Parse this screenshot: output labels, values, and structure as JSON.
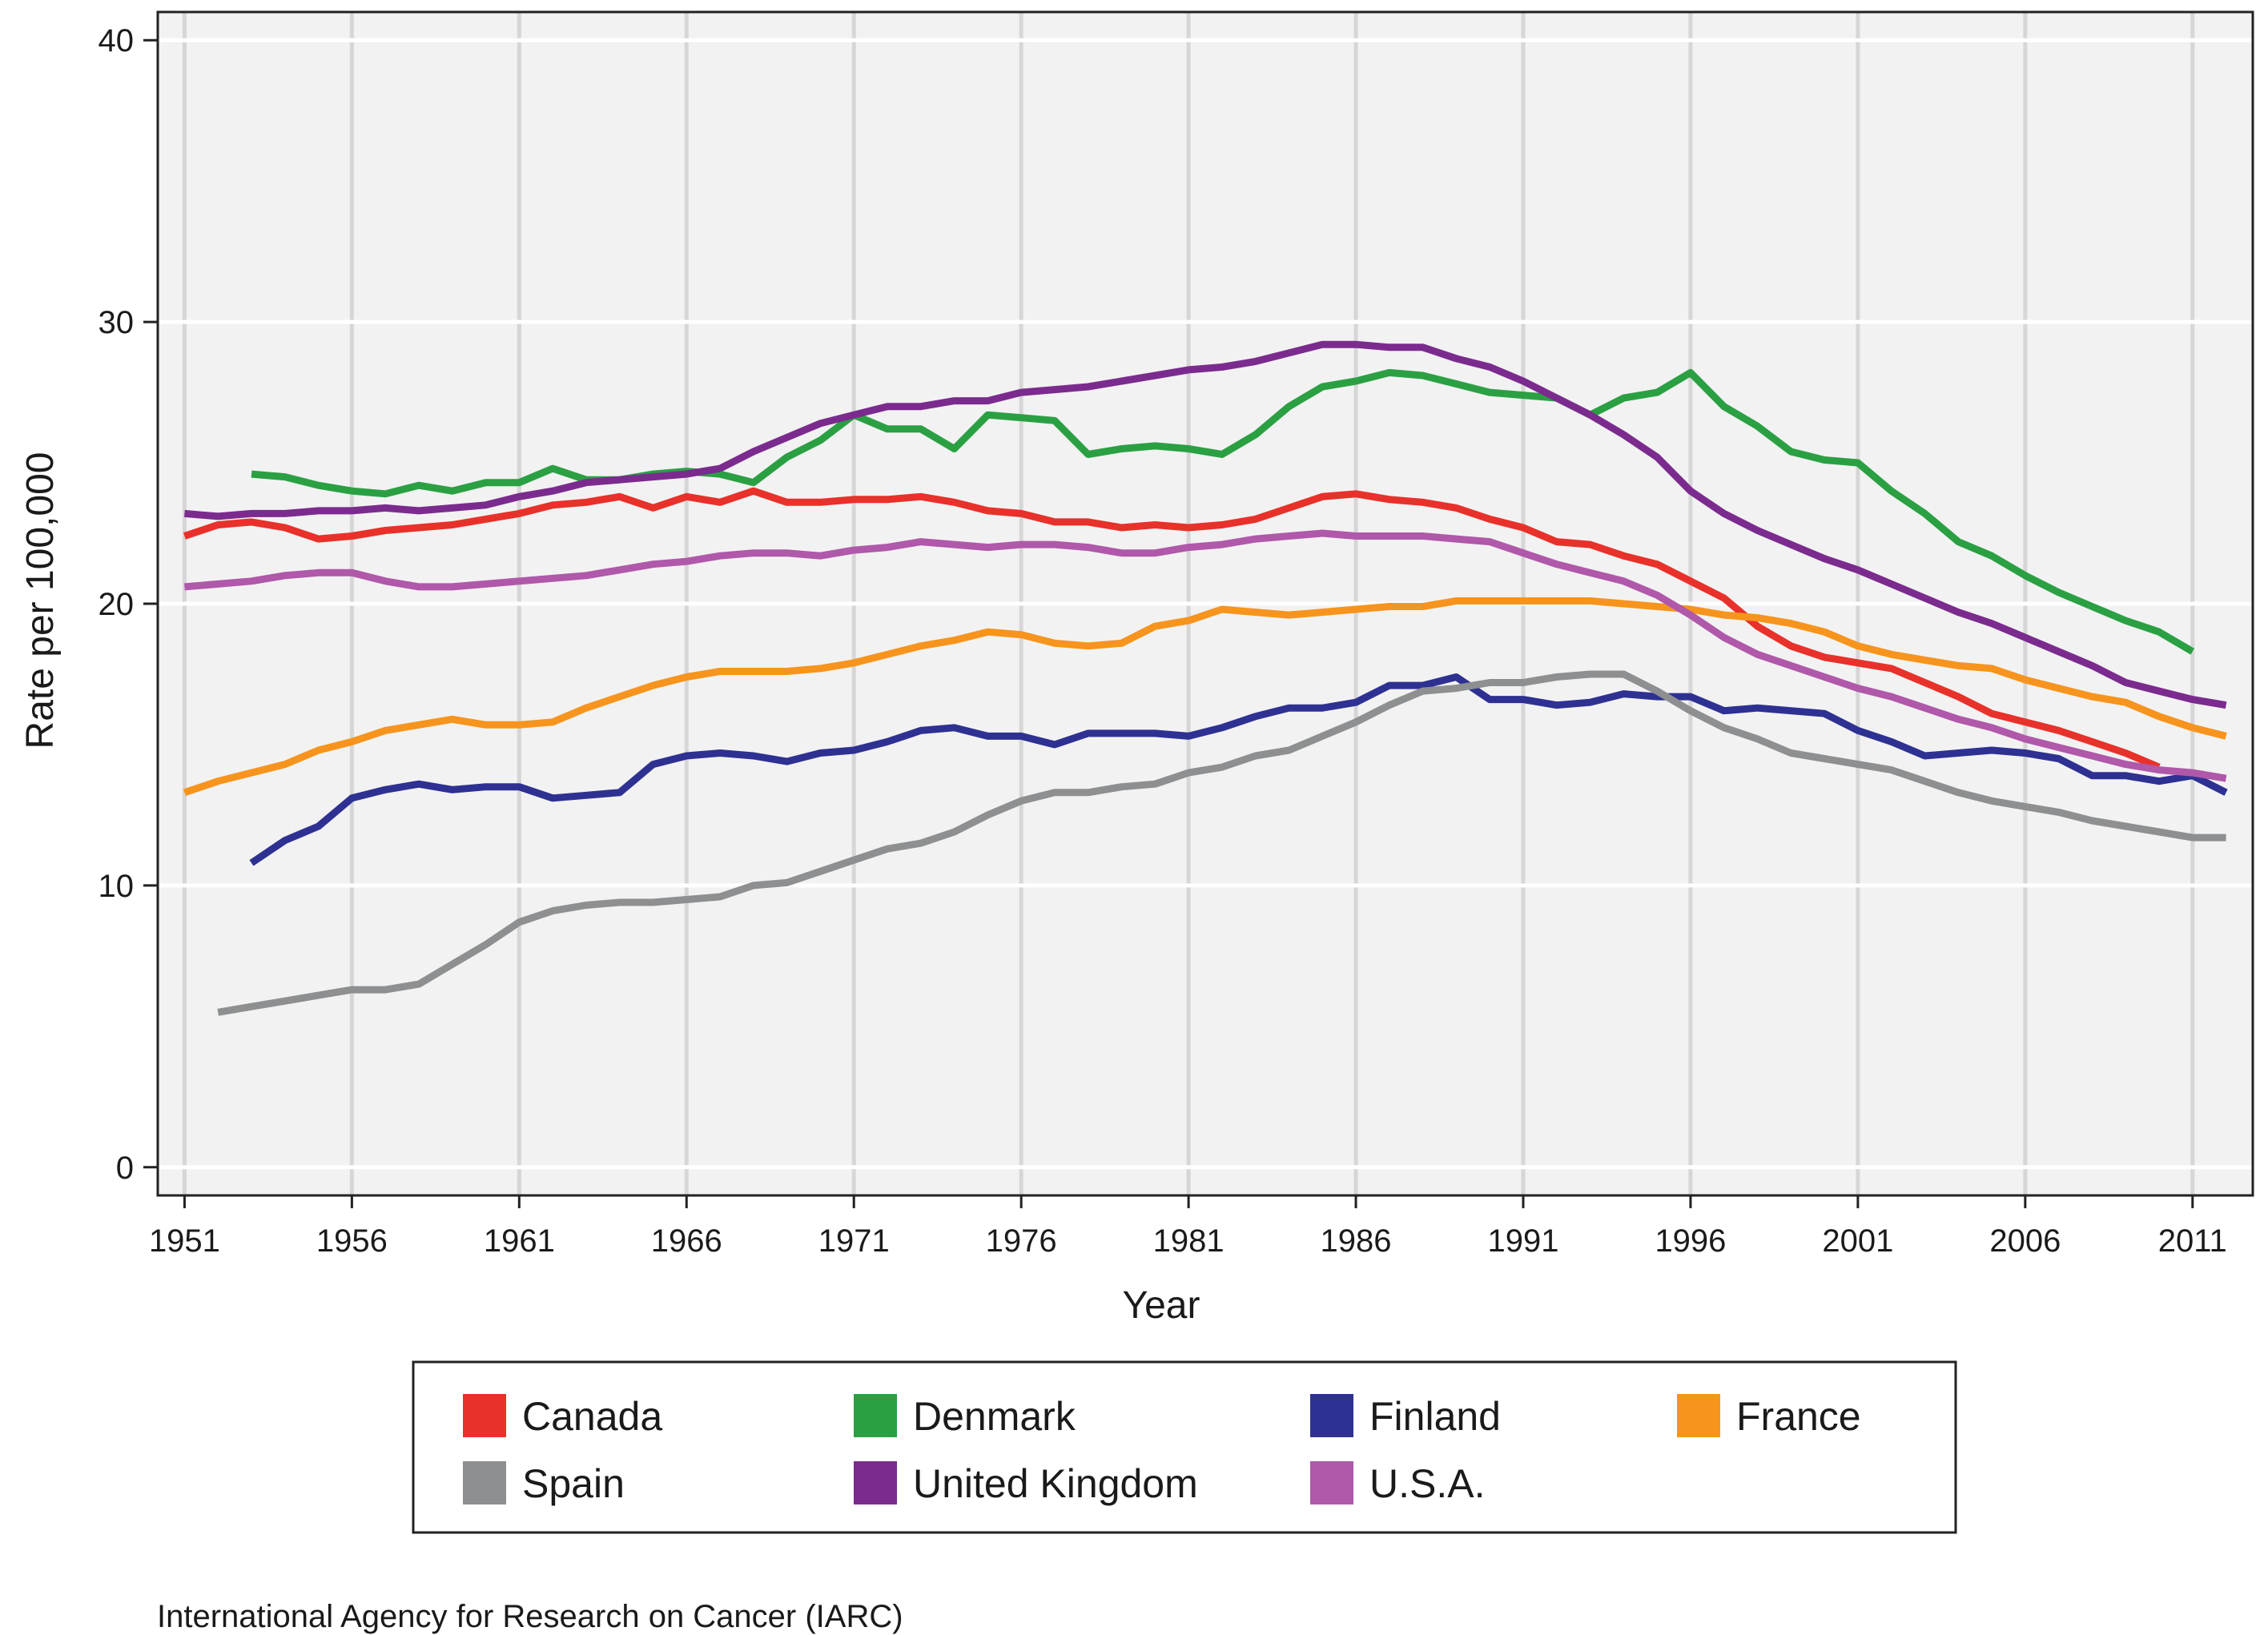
{
  "chart_data": {
    "type": "line",
    "title": "",
    "xlabel": "Year",
    "ylabel": "Rate per 100,000",
    "xlim": [
      1950.2,
      2012.8
    ],
    "ylim": [
      -1,
      41
    ],
    "x_ticks": [
      "1951",
      "1956",
      "1961",
      "1966",
      "1971",
      "1976",
      "1981",
      "1986",
      "1991",
      "1996",
      "2001",
      "2006",
      "2011"
    ],
    "y_ticks": [
      "0",
      "10",
      "20",
      "30",
      "40"
    ],
    "grid": true,
    "legend_position": "bottom",
    "source": "International Agency for Research on Cancer (IARC)",
    "series": [
      {
        "name": "Canada",
        "color": "#e8312a",
        "x": [
          1951,
          1952,
          1953,
          1954,
          1955,
          1956,
          1957,
          1958,
          1959,
          1960,
          1961,
          1962,
          1963,
          1964,
          1965,
          1966,
          1967,
          1968,
          1969,
          1970,
          1971,
          1972,
          1973,
          1974,
          1975,
          1976,
          1977,
          1978,
          1979,
          1980,
          1981,
          1982,
          1983,
          1984,
          1985,
          1986,
          1987,
          1988,
          1989,
          1990,
          1991,
          1992,
          1993,
          1994,
          1995,
          1996,
          1997,
          1998,
          1999,
          2000,
          2001,
          2002,
          2003,
          2004,
          2005,
          2006,
          2007,
          2008,
          2009,
          2010
        ],
        "values": [
          22.4,
          22.8,
          22.9,
          22.7,
          22.3,
          22.4,
          22.6,
          22.7,
          22.8,
          23.0,
          23.2,
          23.5,
          23.6,
          23.8,
          23.4,
          23.8,
          23.6,
          24.0,
          23.6,
          23.6,
          23.7,
          23.7,
          23.8,
          23.6,
          23.3,
          23.2,
          22.9,
          22.9,
          22.7,
          22.8,
          22.7,
          22.8,
          23.0,
          23.4,
          23.8,
          23.9,
          23.7,
          23.6,
          23.4,
          23.0,
          22.7,
          22.2,
          22.1,
          21.7,
          21.4,
          20.8,
          20.2,
          19.2,
          18.5,
          18.1,
          17.9,
          17.7,
          17.2,
          16.7,
          16.1,
          15.8,
          15.5,
          15.1,
          14.7,
          14.2
        ]
      },
      {
        "name": "Denmark",
        "color": "#2aa043",
        "x": [
          1953,
          1954,
          1955,
          1956,
          1957,
          1958,
          1959,
          1960,
          1961,
          1962,
          1963,
          1964,
          1965,
          1966,
          1967,
          1968,
          1969,
          1970,
          1971,
          1972,
          1973,
          1974,
          1975,
          1976,
          1977,
          1978,
          1979,
          1980,
          1981,
          1982,
          1983,
          1984,
          1985,
          1986,
          1987,
          1988,
          1989,
          1990,
          1991,
          1992,
          1993,
          1994,
          1995,
          1996,
          1997,
          1998,
          1999,
          2000,
          2001,
          2002,
          2003,
          2004,
          2005,
          2006,
          2007,
          2008,
          2009,
          2010,
          2011
        ],
        "values": [
          24.6,
          24.5,
          24.2,
          24.0,
          23.9,
          24.2,
          24.0,
          24.3,
          24.3,
          24.8,
          24.4,
          24.4,
          24.6,
          24.7,
          24.6,
          24.3,
          25.2,
          25.8,
          26.7,
          26.2,
          26.2,
          25.5,
          26.7,
          26.6,
          26.5,
          25.3,
          25.5,
          25.6,
          25.5,
          25.3,
          26.0,
          27.0,
          27.7,
          27.9,
          28.2,
          28.1,
          27.8,
          27.5,
          27.4,
          27.3,
          26.7,
          27.3,
          27.5,
          28.2,
          27.0,
          26.3,
          25.4,
          25.1,
          25.0,
          24.0,
          23.2,
          22.2,
          21.7,
          21.0,
          20.4,
          19.9,
          19.4,
          19.0,
          18.3
        ]
      },
      {
        "name": "Finland",
        "color": "#2e3192",
        "x": [
          1953,
          1954,
          1955,
          1956,
          1957,
          1958,
          1959,
          1960,
          1961,
          1962,
          1963,
          1964,
          1965,
          1966,
          1967,
          1968,
          1969,
          1970,
          1971,
          1972,
          1973,
          1974,
          1975,
          1976,
          1977,
          1978,
          1979,
          1980,
          1981,
          1982,
          1983,
          1984,
          1985,
          1986,
          1987,
          1988,
          1989,
          1990,
          1991,
          1992,
          1993,
          1994,
          1995,
          1996,
          1997,
          1998,
          1999,
          2000,
          2001,
          2002,
          2003,
          2004,
          2005,
          2006,
          2007,
          2008,
          2009,
          2010,
          2011,
          2012
        ],
        "values": [
          10.8,
          11.6,
          12.1,
          13.1,
          13.4,
          13.6,
          13.4,
          13.5,
          13.5,
          13.1,
          13.2,
          13.3,
          14.3,
          14.6,
          14.7,
          14.6,
          14.4,
          14.7,
          14.8,
          15.1,
          15.5,
          15.6,
          15.3,
          15.3,
          15.0,
          15.4,
          15.4,
          15.4,
          15.3,
          15.6,
          16.0,
          16.3,
          16.3,
          16.5,
          17.1,
          17.1,
          17.4,
          16.6,
          16.6,
          16.4,
          16.5,
          16.8,
          16.7,
          16.7,
          16.2,
          16.3,
          16.2,
          16.1,
          15.5,
          15.1,
          14.6,
          14.7,
          14.8,
          14.7,
          14.5,
          13.9,
          13.9,
          13.7,
          13.9,
          13.3
        ]
      },
      {
        "name": "France",
        "color": "#f7941d",
        "x": [
          1951,
          1952,
          1953,
          1954,
          1955,
          1956,
          1957,
          1958,
          1959,
          1960,
          1961,
          1962,
          1963,
          1964,
          1965,
          1966,
          1967,
          1968,
          1969,
          1970,
          1971,
          1972,
          1973,
          1974,
          1975,
          1976,
          1977,
          1978,
          1979,
          1980,
          1981,
          1982,
          1983,
          1984,
          1985,
          1986,
          1987,
          1988,
          1989,
          1990,
          1991,
          1992,
          1993,
          1994,
          1995,
          1996,
          1997,
          1998,
          1999,
          2000,
          2001,
          2002,
          2003,
          2004,
          2005,
          2006,
          2007,
          2008,
          2009,
          2010,
          2011,
          2012
        ],
        "values": [
          13.3,
          13.7,
          14.0,
          14.3,
          14.8,
          15.1,
          15.5,
          15.7,
          15.9,
          15.7,
          15.7,
          15.8,
          16.3,
          16.7,
          17.1,
          17.4,
          17.6,
          17.6,
          17.6,
          17.7,
          17.9,
          18.2,
          18.5,
          18.7,
          19.0,
          18.9,
          18.6,
          18.5,
          18.6,
          19.2,
          19.4,
          19.8,
          19.7,
          19.6,
          19.7,
          19.8,
          19.9,
          19.9,
          20.1,
          20.1,
          20.1,
          20.1,
          20.1,
          20.0,
          19.9,
          19.8,
          19.6,
          19.5,
          19.3,
          19.0,
          18.5,
          18.2,
          18.0,
          17.8,
          17.7,
          17.3,
          17.0,
          16.7,
          16.5,
          16.0,
          15.6,
          15.3
        ]
      },
      {
        "name": "Spain",
        "color": "#8d8f90",
        "x": [
          1952,
          1953,
          1954,
          1955,
          1956,
          1957,
          1958,
          1959,
          1960,
          1961,
          1962,
          1963,
          1964,
          1965,
          1966,
          1967,
          1968,
          1969,
          1970,
          1971,
          1972,
          1973,
          1974,
          1975,
          1976,
          1977,
          1978,
          1979,
          1980,
          1981,
          1982,
          1983,
          1984,
          1985,
          1986,
          1987,
          1988,
          1989,
          1990,
          1991,
          1992,
          1993,
          1994,
          1995,
          1996,
          1997,
          1998,
          1999,
          2000,
          2001,
          2002,
          2003,
          2004,
          2005,
          2006,
          2007,
          2008,
          2009,
          2010,
          2011,
          2012
        ],
        "values": [
          5.5,
          5.7,
          5.9,
          6.1,
          6.3,
          6.3,
          6.5,
          7.2,
          7.9,
          8.7,
          9.1,
          9.3,
          9.4,
          9.4,
          9.5,
          9.6,
          10.0,
          10.1,
          10.5,
          10.9,
          11.3,
          11.5,
          11.9,
          12.5,
          13.0,
          13.3,
          13.3,
          13.5,
          13.6,
          14.0,
          14.2,
          14.6,
          14.8,
          15.3,
          15.8,
          16.4,
          16.9,
          17.0,
          17.2,
          17.2,
          17.4,
          17.5,
          17.5,
          16.9,
          16.2,
          15.6,
          15.2,
          14.7,
          14.5,
          14.3,
          14.1,
          13.7,
          13.3,
          13.0,
          12.8,
          12.6,
          12.3,
          12.1,
          11.9,
          11.7,
          11.7
        ]
      },
      {
        "name": "United Kingdom",
        "color": "#7b2b8e",
        "x": [
          1951,
          1952,
          1953,
          1954,
          1955,
          1956,
          1957,
          1958,
          1959,
          1960,
          1961,
          1962,
          1963,
          1964,
          1965,
          1966,
          1967,
          1968,
          1969,
          1970,
          1971,
          1972,
          1973,
          1974,
          1975,
          1976,
          1977,
          1978,
          1979,
          1980,
          1981,
          1982,
          1983,
          1984,
          1985,
          1986,
          1987,
          1988,
          1989,
          1990,
          1991,
          1992,
          1993,
          1994,
          1995,
          1996,
          1997,
          1998,
          1999,
          2000,
          2001,
          2002,
          2003,
          2004,
          2005,
          2006,
          2007,
          2008,
          2009,
          2010,
          2011,
          2012
        ],
        "values": [
          23.2,
          23.1,
          23.2,
          23.2,
          23.3,
          23.3,
          23.4,
          23.3,
          23.4,
          23.5,
          23.8,
          24.0,
          24.3,
          24.4,
          24.5,
          24.6,
          24.8,
          25.4,
          25.9,
          26.4,
          26.7,
          27.0,
          27.0,
          27.2,
          27.2,
          27.5,
          27.6,
          27.7,
          27.9,
          28.1,
          28.3,
          28.4,
          28.6,
          28.9,
          29.2,
          29.2,
          29.1,
          29.1,
          28.7,
          28.4,
          27.9,
          27.3,
          26.7,
          26.0,
          25.2,
          24.0,
          23.2,
          22.6,
          22.1,
          21.6,
          21.2,
          20.7,
          20.2,
          19.7,
          19.3,
          18.8,
          18.3,
          17.8,
          17.2,
          16.9,
          16.6,
          16.4
        ]
      },
      {
        "name": "U.S.A.",
        "color": "#b058aa",
        "x": [
          1951,
          1952,
          1953,
          1954,
          1955,
          1956,
          1957,
          1958,
          1959,
          1960,
          1961,
          1962,
          1963,
          1964,
          1965,
          1966,
          1967,
          1968,
          1969,
          1970,
          1971,
          1972,
          1973,
          1974,
          1975,
          1976,
          1977,
          1978,
          1979,
          1980,
          1981,
          1982,
          1983,
          1984,
          1985,
          1986,
          1987,
          1988,
          1989,
          1990,
          1991,
          1992,
          1993,
          1994,
          1995,
          1996,
          1997,
          1998,
          1999,
          2000,
          2001,
          2002,
          2003,
          2004,
          2005,
          2006,
          2007,
          2008,
          2009,
          2010,
          2011,
          2012
        ],
        "values": [
          20.6,
          20.7,
          20.8,
          21.0,
          21.1,
          21.1,
          20.8,
          20.6,
          20.6,
          20.7,
          20.8,
          20.9,
          21.0,
          21.2,
          21.4,
          21.5,
          21.7,
          21.8,
          21.8,
          21.7,
          21.9,
          22.0,
          22.2,
          22.1,
          22.0,
          22.1,
          22.1,
          22.0,
          21.8,
          21.8,
          22.0,
          22.1,
          22.3,
          22.4,
          22.5,
          22.4,
          22.4,
          22.4,
          22.3,
          22.2,
          21.8,
          21.4,
          21.1,
          20.8,
          20.3,
          19.6,
          18.8,
          18.2,
          17.8,
          17.4,
          17.0,
          16.7,
          16.3,
          15.9,
          15.6,
          15.2,
          14.9,
          14.6,
          14.3,
          14.1,
          14.0,
          13.8
        ]
      }
    ]
  }
}
